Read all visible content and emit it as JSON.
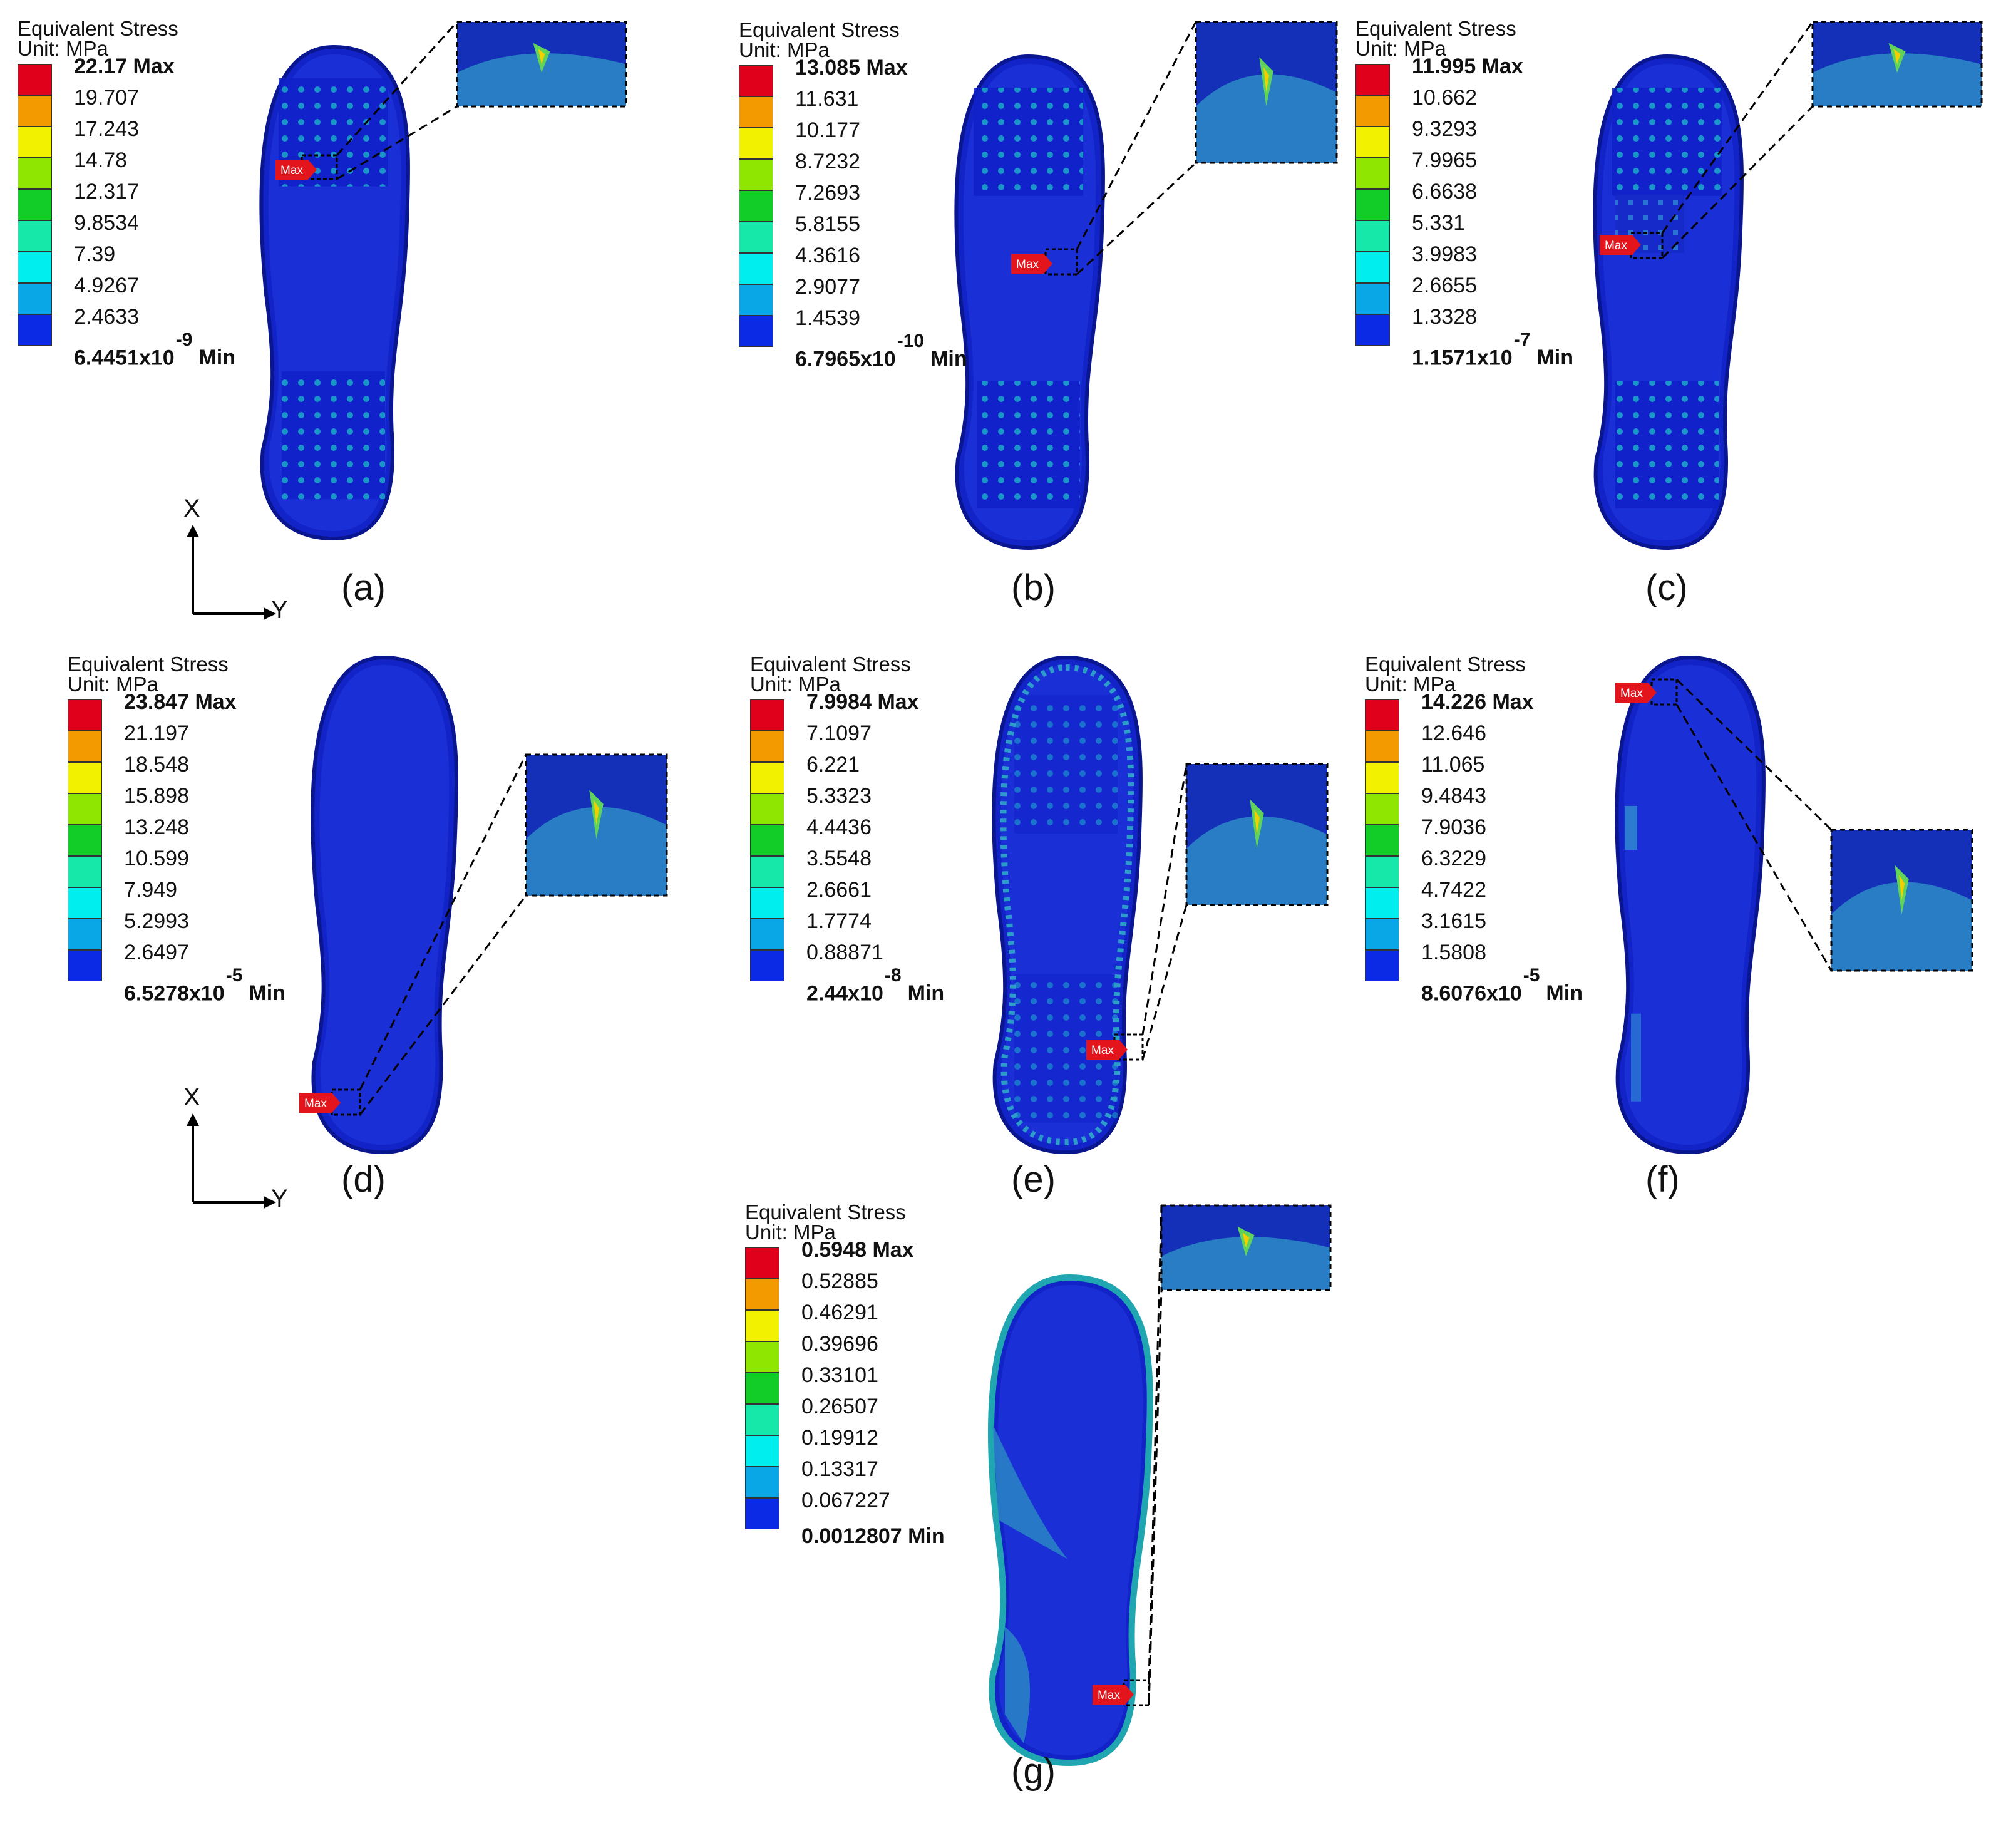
{
  "legend": {
    "title": "Equivalent Stress",
    "unit": "Unit: MPa",
    "colors": [
      "#e0001b",
      "#f29a00",
      "#f2f200",
      "#8fe600",
      "#12cc28",
      "#15e8a8",
      "#00eeee",
      "#0aa7e6",
      "#0a2ae6"
    ]
  },
  "max_tag": "Max",
  "axes": {
    "x": "X",
    "y": "Y"
  },
  "panels": [
    {
      "id": "a",
      "caption": "(a)",
      "max": "22.17 Max",
      "labels": [
        "19.707",
        "17.243",
        "14.78",
        "12.317",
        "9.8534",
        "7.39",
        "4.9267",
        "2.4633"
      ],
      "min_base": "6.4451x10",
      "min_exp": "-9",
      "min_word": "Min"
    },
    {
      "id": "b",
      "caption": "(b)",
      "max": "13.085 Max",
      "labels": [
        "11.631",
        "10.177",
        "8.7232",
        "7.2693",
        "5.8155",
        "4.3616",
        "2.9077",
        "1.4539"
      ],
      "min_base": "6.7965x10",
      "min_exp": "-10",
      "min_word": "Min"
    },
    {
      "id": "c",
      "caption": "(c)",
      "max": "11.995 Max",
      "labels": [
        "10.662",
        "9.3293",
        "7.9965",
        "6.6638",
        "5.331",
        "3.9983",
        "2.6655",
        "1.3328"
      ],
      "min_base": "1.1571x10",
      "min_exp": "-7",
      "min_word": "Min"
    },
    {
      "id": "d",
      "caption": "(d)",
      "max": "23.847 Max",
      "labels": [
        "21.197",
        "18.548",
        "15.898",
        "13.248",
        "10.599",
        "7.949",
        "5.2993",
        "2.6497"
      ],
      "min_base": "6.5278x10",
      "min_exp": "-5",
      "min_word": "Min"
    },
    {
      "id": "e",
      "caption": "(e)",
      "max": "7.9984 Max",
      "labels": [
        "7.1097",
        "6.221",
        "5.3323",
        "4.4436",
        "3.5548",
        "2.6661",
        "1.7774",
        "0.88871"
      ],
      "min_base": "2.44x10",
      "min_exp": "-8",
      "min_word": "Min"
    },
    {
      "id": "f",
      "caption": "(f)",
      "max": "14.226 Max",
      "labels": [
        "12.646",
        "11.065",
        "9.4843",
        "7.9036",
        "6.3229",
        "4.7422",
        "3.1615",
        "1.5808"
      ],
      "min_base": "8.6076x10",
      "min_exp": "-5",
      "min_word": "Min"
    },
    {
      "id": "g",
      "caption": "(g)",
      "max": "0.5948 Max",
      "labels": [
        "0.52885",
        "0.46291",
        "0.39696",
        "0.33101",
        "0.26507",
        "0.19912",
        "0.13317",
        "0.067227"
      ],
      "min_base": "0.0012807 Min",
      "min_exp": "",
      "min_word": ""
    }
  ]
}
